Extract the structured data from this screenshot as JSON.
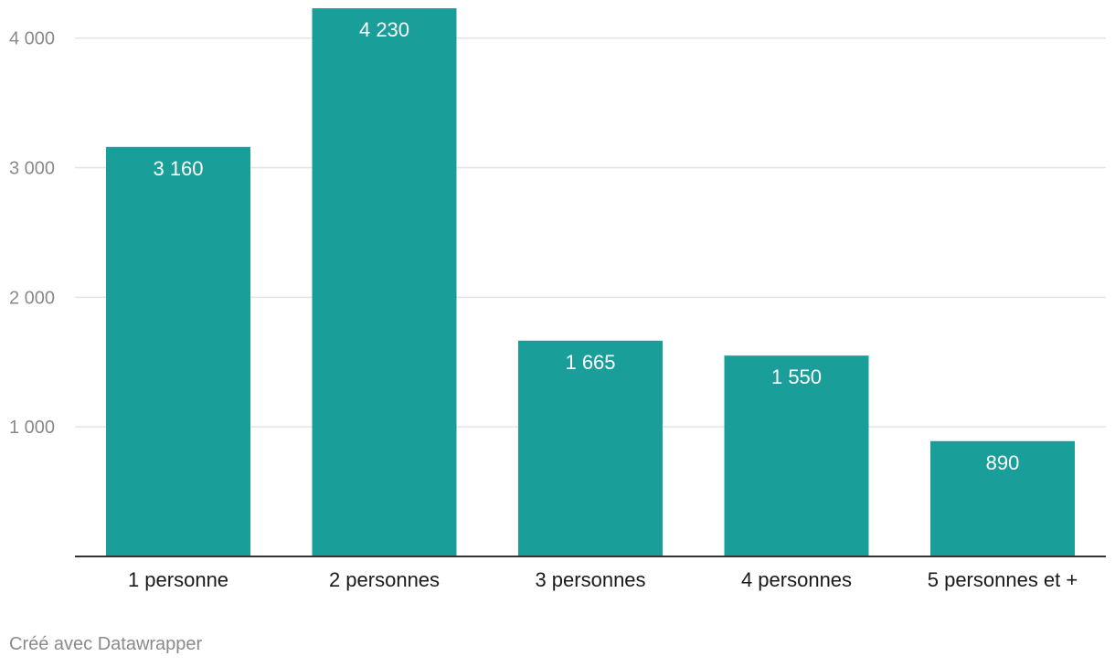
{
  "chart_data": {
    "type": "bar",
    "title": "",
    "xlabel": "",
    "ylabel": "",
    "categories": [
      "1 personne",
      "2 personnes",
      "3 personnes",
      "4 personnes",
      "5 personnes et +"
    ],
    "values": [
      3160,
      4230,
      1665,
      1550,
      890
    ],
    "value_labels": [
      "3 160",
      "4 230",
      "1 665",
      "1 550",
      "890"
    ],
    "y_ticks": [
      1000,
      2000,
      3000,
      4000
    ],
    "y_tick_labels": [
      "1 000",
      "2 000",
      "3 000",
      "4 000"
    ],
    "ylim": [
      0,
      4230
    ],
    "grid": true,
    "legend": "none",
    "colors": {
      "bar": "#1a9e99",
      "gridline": "#e3e3e3",
      "baseline": "#333333",
      "tick_label": "#8a8a8a",
      "category_label": "#1a1a1a",
      "value_label": "#ffffff"
    }
  },
  "footer": {
    "credit": "Créé avec Datawrapper"
  }
}
